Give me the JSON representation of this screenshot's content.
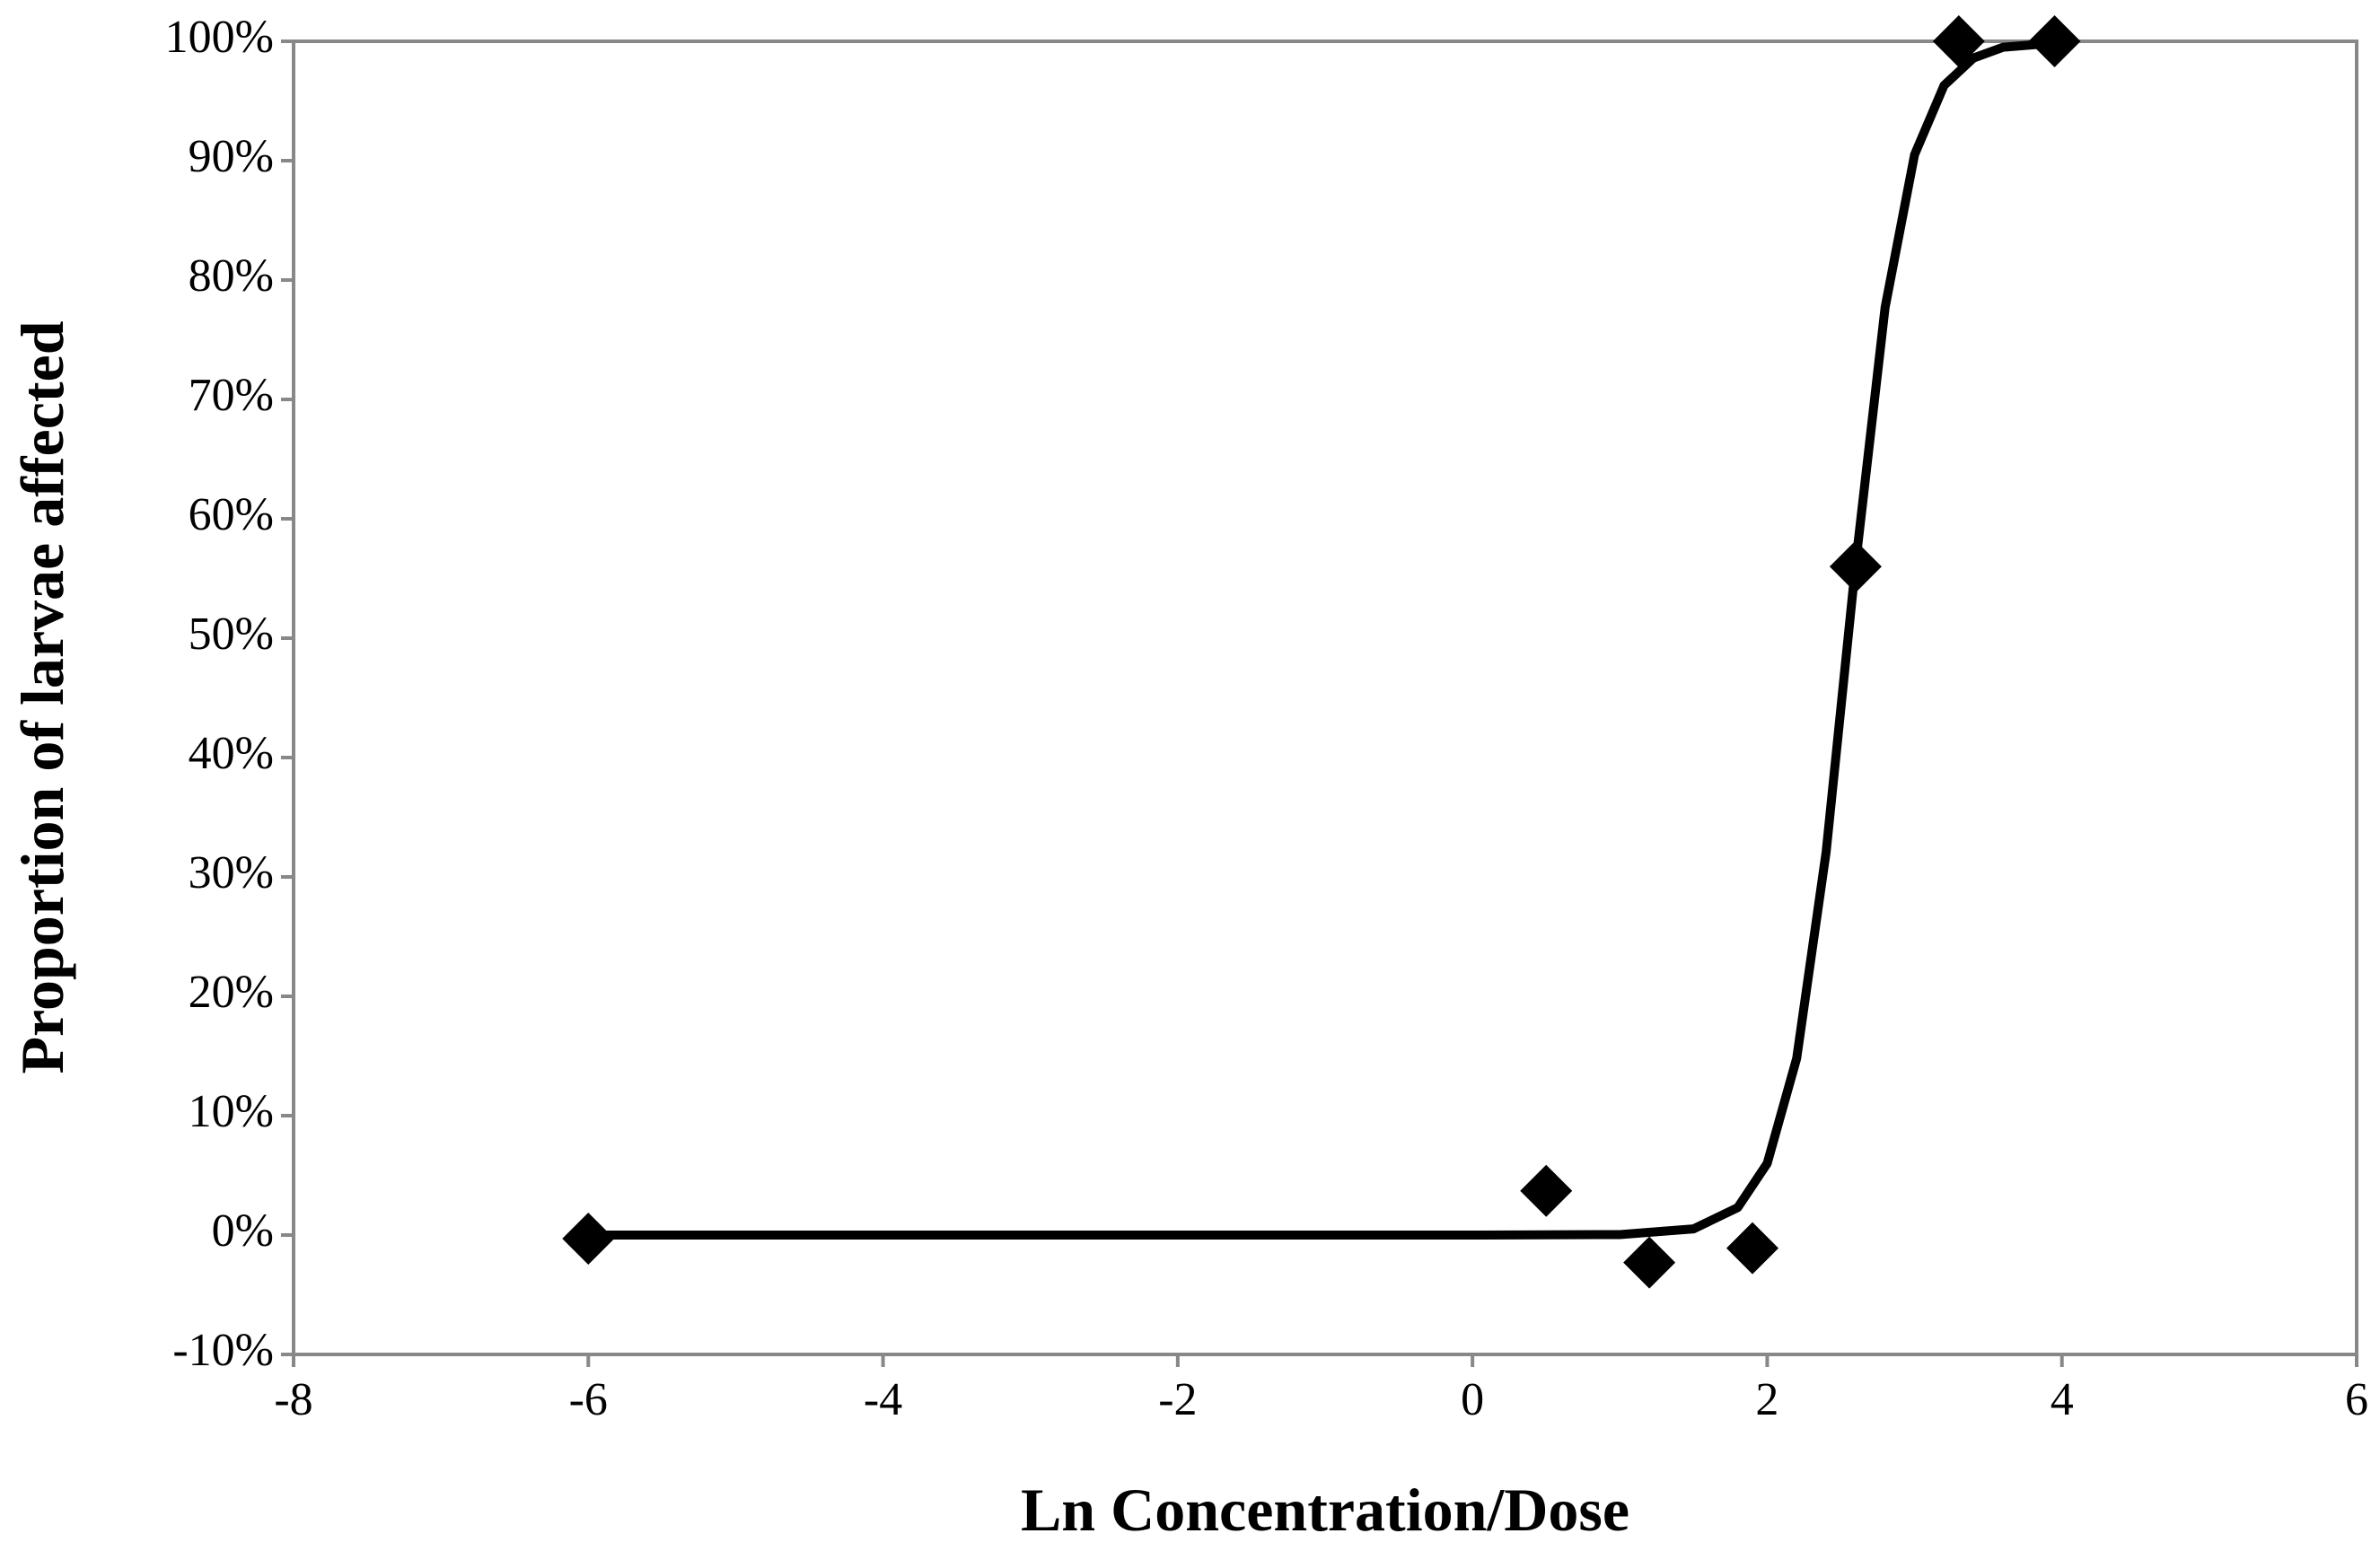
{
  "chart_data": {
    "type": "scatter",
    "x_label": "Ln Concentration/Dose",
    "y_label": "Proportion of larvae affected",
    "xlim": [
      -8,
      6
    ],
    "xticks": [
      -8,
      -6,
      -4,
      -2,
      0,
      2,
      4,
      6
    ],
    "ylim": [
      -10,
      100
    ],
    "yticks": [
      {
        "value": -10,
        "label": "-10%"
      },
      {
        "value": 0,
        "label": "0%"
      },
      {
        "value": 10,
        "label": "10%"
      },
      {
        "value": 20,
        "label": "20%"
      },
      {
        "value": 30,
        "label": "30%"
      },
      {
        "value": 40,
        "label": "40%"
      },
      {
        "value": 50,
        "label": "50%"
      },
      {
        "value": 60,
        "label": "60%"
      },
      {
        "value": 70,
        "label": "70%"
      },
      {
        "value": 80,
        "label": "80%"
      },
      {
        "value": 90,
        "label": "90%"
      },
      {
        "value": 100,
        "label": "100%"
      }
    ],
    "grid": false,
    "series": [
      {
        "type": "scatter",
        "color": "#000000",
        "x": [
          -6,
          0.5,
          1.2,
          1.9,
          2.6,
          3.3,
          3.95
        ],
        "values": [
          -0.3,
          3.7,
          -2.3,
          -1.1,
          56,
          100,
          100
        ]
      },
      {
        "type": "line",
        "color": "#000000",
        "x": [
          -6,
          -2,
          0,
          1,
          1.5,
          1.8,
          2.0,
          2.2,
          2.4,
          2.6,
          2.8,
          3.0,
          3.2,
          3.4,
          3.6,
          4.0
        ],
        "values": [
          0,
          0,
          0,
          0.04,
          0.52,
          2.3,
          6.0,
          14.8,
          32.1,
          56.2,
          77.7,
          90.5,
          96.3,
          98.6,
          99.5,
          99.9
        ]
      }
    ]
  }
}
